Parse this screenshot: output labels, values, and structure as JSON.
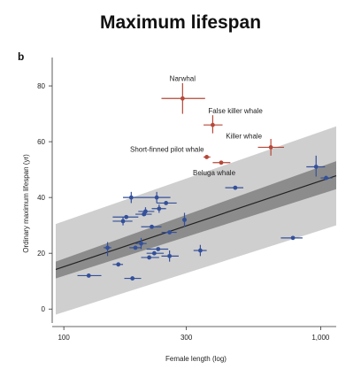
{
  "figure": {
    "title": "Maximum lifespan",
    "panel_label": "b"
  },
  "chart_data": {
    "type": "scatter",
    "title": "Maximum lifespan",
    "xlabel": "Female length (log)",
    "ylabel": "Ordinary maximum lifespan (yr)",
    "x_scale": "log",
    "xlim": [
      93,
      1150
    ],
    "ylim": [
      -5,
      87
    ],
    "x_ticks": [
      100,
      300,
      1000
    ],
    "x_tick_labels": [
      "100",
      "300",
      "1,000"
    ],
    "y_ticks": [
      0,
      20,
      40,
      60,
      80
    ],
    "y_tick_labels": [
      "0",
      "20",
      "40",
      "60",
      "80"
    ],
    "colors": {
      "highlight": "#b5483a",
      "other": "#34509a",
      "regression_line": "#222222",
      "ci_inner": "#8c8c8c",
      "ci_outer": "#cfcfcf"
    },
    "regression": {
      "x": [
        93,
        1150
      ],
      "y": [
        14.2,
        47.8
      ],
      "ci_inner_lower": [
        11.0,
        43.0
      ],
      "ci_inner_upper": [
        17.0,
        53.0
      ],
      "ci_outer_lower": [
        -2.0,
        30.0
      ],
      "ci_outer_upper": [
        30.5,
        65.5
      ]
    },
    "series": [
      {
        "name": "",
        "points": [
          {
            "label": "Narwhal",
            "x": 290,
            "y": 75.5,
            "xerr": [
              240,
              355
            ],
            "yerr": [
              70,
              81
            ]
          },
          {
            "label": "False killer whale",
            "x": 380,
            "y": 66,
            "xerr": [
              350,
              415
            ],
            "yerr": [
              63,
              69.5
            ]
          },
          {
            "label": "Killer whale",
            "x": 640,
            "y": 58,
            "xerr": [
              570,
              720
            ],
            "yerr": [
              55,
              61
            ]
          },
          {
            "label": "Short-finned pilot whale",
            "x": 360,
            "y": 54.5,
            "xerr": [
              350,
              372
            ],
            "yerr": [
              54,
              55
            ]
          },
          {
            "label": "Beluga whale",
            "x": 410,
            "y": 52.5,
            "xerr": [
              380,
              445
            ],
            "yerr": [
              52,
              53
            ]
          }
        ]
      },
      {
        "name": "",
        "points": [
          {
            "x": 465,
            "y": 43.5,
            "xerr": [
              425,
              500
            ],
            "yerr": [
              43.5,
              43.5
            ]
          },
          {
            "x": 960,
            "y": 51,
            "xerr": [
              880,
              1040
            ],
            "yerr": [
              47.5,
              55
            ]
          },
          {
            "x": 1050,
            "y": 47,
            "xerr": [
              1000,
              1110
            ],
            "yerr": [
              47,
              47
            ]
          },
          {
            "x": 780,
            "y": 25.5,
            "xerr": [
              700,
              850
            ],
            "yerr": [
              25.5,
              25.5
            ]
          },
          {
            "x": 183,
            "y": 40,
            "xerr": [
              170,
              200
            ],
            "yerr": [
              38,
              42
            ]
          },
          {
            "x": 230,
            "y": 40,
            "xerr": [
              200,
              260
            ],
            "yerr": [
              38,
              42
            ]
          },
          {
            "x": 250,
            "y": 38,
            "xerr": [
              230,
              275
            ],
            "yerr": [
              38,
              38
            ]
          },
          {
            "x": 235,
            "y": 36,
            "xerr": [
              220,
              250
            ],
            "yerr": [
              34.5,
              37.5
            ]
          },
          {
            "x": 208,
            "y": 35,
            "xerr": [
              195,
              225
            ],
            "yerr": [
              33.5,
              36.5
            ]
          },
          {
            "x": 205,
            "y": 34,
            "xerr": [
              190,
              220
            ],
            "yerr": [
              34,
              34
            ]
          },
          {
            "x": 175,
            "y": 33,
            "xerr": [
              155,
              195
            ],
            "yerr": [
              33,
              33
            ]
          },
          {
            "x": 170,
            "y": 31.5,
            "xerr": [
              155,
              185
            ],
            "yerr": [
              30,
              33
            ]
          },
          {
            "x": 295,
            "y": 32,
            "xerr": [
              290,
              300
            ],
            "yerr": [
              29.5,
              34.5
            ]
          },
          {
            "x": 220,
            "y": 29.5,
            "xerr": [
              200,
              240
            ],
            "yerr": [
              29.5,
              29.5
            ]
          },
          {
            "x": 258,
            "y": 27.5,
            "xerr": [
              240,
              275
            ],
            "yerr": [
              27.5,
              27.5
            ]
          },
          {
            "x": 200,
            "y": 23.5,
            "xerr": [
              190,
              210
            ],
            "yerr": [
              21.5,
              25.5
            ]
          },
          {
            "x": 148,
            "y": 22,
            "xerr": [
              143,
              153
            ],
            "yerr": [
              19,
              24
            ]
          },
          {
            "x": 190,
            "y": 22,
            "xerr": [
              180,
              200
            ],
            "yerr": [
              22,
              22
            ]
          },
          {
            "x": 233,
            "y": 21.5,
            "xerr": [
              210,
              255
            ],
            "yerr": [
              21.5,
              21.5
            ]
          },
          {
            "x": 340,
            "y": 21,
            "xerr": [
              320,
              360
            ],
            "yerr": [
              19,
              23
            ]
          },
          {
            "x": 225,
            "y": 20,
            "xerr": [
              210,
              245
            ],
            "yerr": [
              20,
              20
            ]
          },
          {
            "x": 258,
            "y": 19,
            "xerr": [
              240,
              280
            ],
            "yerr": [
              17,
              21
            ]
          },
          {
            "x": 215,
            "y": 18.5,
            "xerr": [
              200,
              235
            ],
            "yerr": [
              18.5,
              18.5
            ]
          },
          {
            "x": 163,
            "y": 16,
            "xerr": [
              155,
              170
            ],
            "yerr": [
              16,
              16
            ]
          },
          {
            "x": 125,
            "y": 12,
            "xerr": [
              113,
              140
            ],
            "yerr": [
              12,
              12
            ]
          },
          {
            "x": 185,
            "y": 11,
            "xerr": [
              172,
              200
            ],
            "yerr": [
              11,
              11
            ]
          }
        ]
      }
    ]
  }
}
